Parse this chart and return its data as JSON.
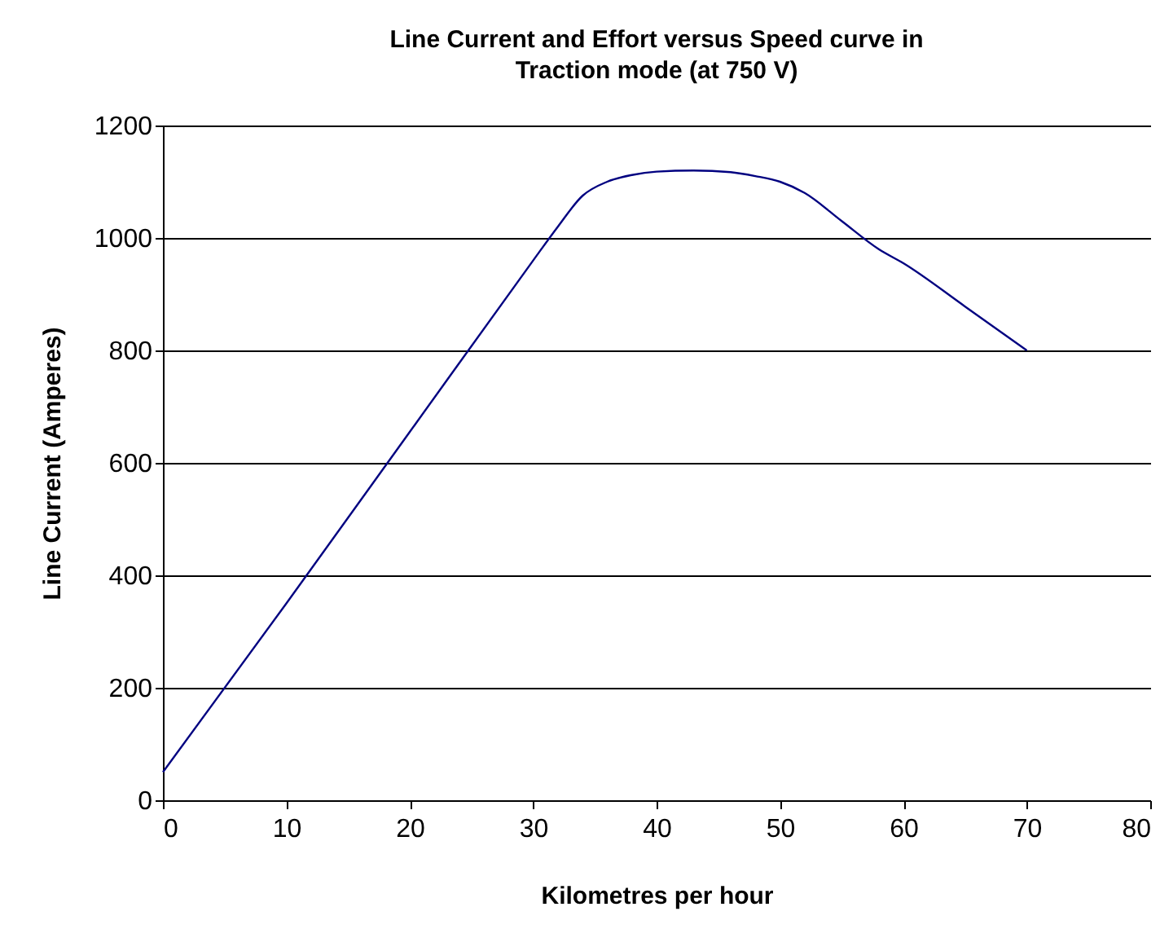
{
  "chart_data": {
    "type": "line",
    "title": "Line Current and Effort versus Speed curve in Traction mode (at 750 V)",
    "xlabel": "Kilometres per hour",
    "ylabel": "Line  Current (Amperes)",
    "x": [
      0,
      10,
      20,
      30,
      32,
      34,
      36,
      38,
      40,
      43,
      46,
      48,
      50,
      52,
      55,
      58,
      60,
      65,
      70
    ],
    "series": [
      {
        "color": "#000080",
        "values": [
          50,
          350,
          655,
          960,
          1020,
          1075,
          1100,
          1112,
          1118,
          1120,
          1117,
          1110,
          1100,
          1080,
          1030,
          980,
          955,
          878,
          800
        ]
      }
    ],
    "xlim": [
      0,
      80
    ],
    "xticks": [
      0,
      10,
      20,
      30,
      40,
      50,
      60,
      70,
      80
    ],
    "ylim": [
      0,
      1200
    ],
    "yticks": [
      0,
      200,
      400,
      600,
      800,
      1000,
      1200
    ],
    "grid": "y",
    "marker": "none",
    "line_style": "solid"
  }
}
